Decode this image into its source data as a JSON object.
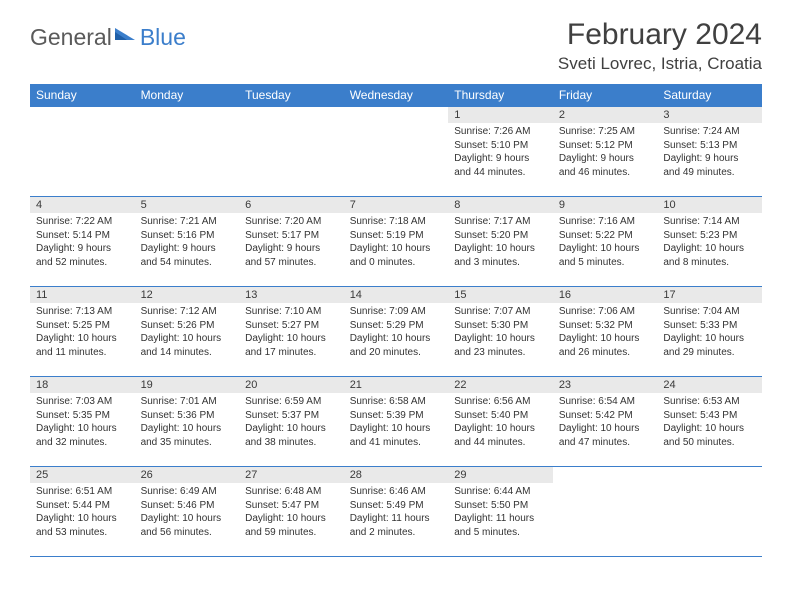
{
  "logo": {
    "word1": "General",
    "word2": "Blue"
  },
  "title": "February 2024",
  "location": "Sveti Lovrec, Istria, Croatia",
  "colors": {
    "header_bg": "#3b7ecb",
    "header_fg": "#ffffff",
    "daynum_bg": "#e9e9e9",
    "rule": "#3b7ecb",
    "text": "#333333",
    "title": "#404040",
    "logo_gray": "#5a5a5a",
    "logo_blue": "#3b7ecb"
  },
  "weekdays": [
    "Sunday",
    "Monday",
    "Tuesday",
    "Wednesday",
    "Thursday",
    "Friday",
    "Saturday"
  ],
  "weeks": [
    [
      null,
      null,
      null,
      null,
      {
        "n": "1",
        "sunrise": "7:26 AM",
        "sunset": "5:10 PM",
        "daylight": "9 hours and 44 minutes."
      },
      {
        "n": "2",
        "sunrise": "7:25 AM",
        "sunset": "5:12 PM",
        "daylight": "9 hours and 46 minutes."
      },
      {
        "n": "3",
        "sunrise": "7:24 AM",
        "sunset": "5:13 PM",
        "daylight": "9 hours and 49 minutes."
      }
    ],
    [
      {
        "n": "4",
        "sunrise": "7:22 AM",
        "sunset": "5:14 PM",
        "daylight": "9 hours and 52 minutes."
      },
      {
        "n": "5",
        "sunrise": "7:21 AM",
        "sunset": "5:16 PM",
        "daylight": "9 hours and 54 minutes."
      },
      {
        "n": "6",
        "sunrise": "7:20 AM",
        "sunset": "5:17 PM",
        "daylight": "9 hours and 57 minutes."
      },
      {
        "n": "7",
        "sunrise": "7:18 AM",
        "sunset": "5:19 PM",
        "daylight": "10 hours and 0 minutes."
      },
      {
        "n": "8",
        "sunrise": "7:17 AM",
        "sunset": "5:20 PM",
        "daylight": "10 hours and 3 minutes."
      },
      {
        "n": "9",
        "sunrise": "7:16 AM",
        "sunset": "5:22 PM",
        "daylight": "10 hours and 5 minutes."
      },
      {
        "n": "10",
        "sunrise": "7:14 AM",
        "sunset": "5:23 PM",
        "daylight": "10 hours and 8 minutes."
      }
    ],
    [
      {
        "n": "11",
        "sunrise": "7:13 AM",
        "sunset": "5:25 PM",
        "daylight": "10 hours and 11 minutes."
      },
      {
        "n": "12",
        "sunrise": "7:12 AM",
        "sunset": "5:26 PM",
        "daylight": "10 hours and 14 minutes."
      },
      {
        "n": "13",
        "sunrise": "7:10 AM",
        "sunset": "5:27 PM",
        "daylight": "10 hours and 17 minutes."
      },
      {
        "n": "14",
        "sunrise": "7:09 AM",
        "sunset": "5:29 PM",
        "daylight": "10 hours and 20 minutes."
      },
      {
        "n": "15",
        "sunrise": "7:07 AM",
        "sunset": "5:30 PM",
        "daylight": "10 hours and 23 minutes."
      },
      {
        "n": "16",
        "sunrise": "7:06 AM",
        "sunset": "5:32 PM",
        "daylight": "10 hours and 26 minutes."
      },
      {
        "n": "17",
        "sunrise": "7:04 AM",
        "sunset": "5:33 PM",
        "daylight": "10 hours and 29 minutes."
      }
    ],
    [
      {
        "n": "18",
        "sunrise": "7:03 AM",
        "sunset": "5:35 PM",
        "daylight": "10 hours and 32 minutes."
      },
      {
        "n": "19",
        "sunrise": "7:01 AM",
        "sunset": "5:36 PM",
        "daylight": "10 hours and 35 minutes."
      },
      {
        "n": "20",
        "sunrise": "6:59 AM",
        "sunset": "5:37 PM",
        "daylight": "10 hours and 38 minutes."
      },
      {
        "n": "21",
        "sunrise": "6:58 AM",
        "sunset": "5:39 PM",
        "daylight": "10 hours and 41 minutes."
      },
      {
        "n": "22",
        "sunrise": "6:56 AM",
        "sunset": "5:40 PM",
        "daylight": "10 hours and 44 minutes."
      },
      {
        "n": "23",
        "sunrise": "6:54 AM",
        "sunset": "5:42 PM",
        "daylight": "10 hours and 47 minutes."
      },
      {
        "n": "24",
        "sunrise": "6:53 AM",
        "sunset": "5:43 PM",
        "daylight": "10 hours and 50 minutes."
      }
    ],
    [
      {
        "n": "25",
        "sunrise": "6:51 AM",
        "sunset": "5:44 PM",
        "daylight": "10 hours and 53 minutes."
      },
      {
        "n": "26",
        "sunrise": "6:49 AM",
        "sunset": "5:46 PM",
        "daylight": "10 hours and 56 minutes."
      },
      {
        "n": "27",
        "sunrise": "6:48 AM",
        "sunset": "5:47 PM",
        "daylight": "10 hours and 59 minutes."
      },
      {
        "n": "28",
        "sunrise": "6:46 AM",
        "sunset": "5:49 PM",
        "daylight": "11 hours and 2 minutes."
      },
      {
        "n": "29",
        "sunrise": "6:44 AM",
        "sunset": "5:50 PM",
        "daylight": "11 hours and 5 minutes."
      },
      null,
      null
    ]
  ],
  "labels": {
    "sunrise": "Sunrise:",
    "sunset": "Sunset:",
    "daylight": "Daylight:"
  }
}
